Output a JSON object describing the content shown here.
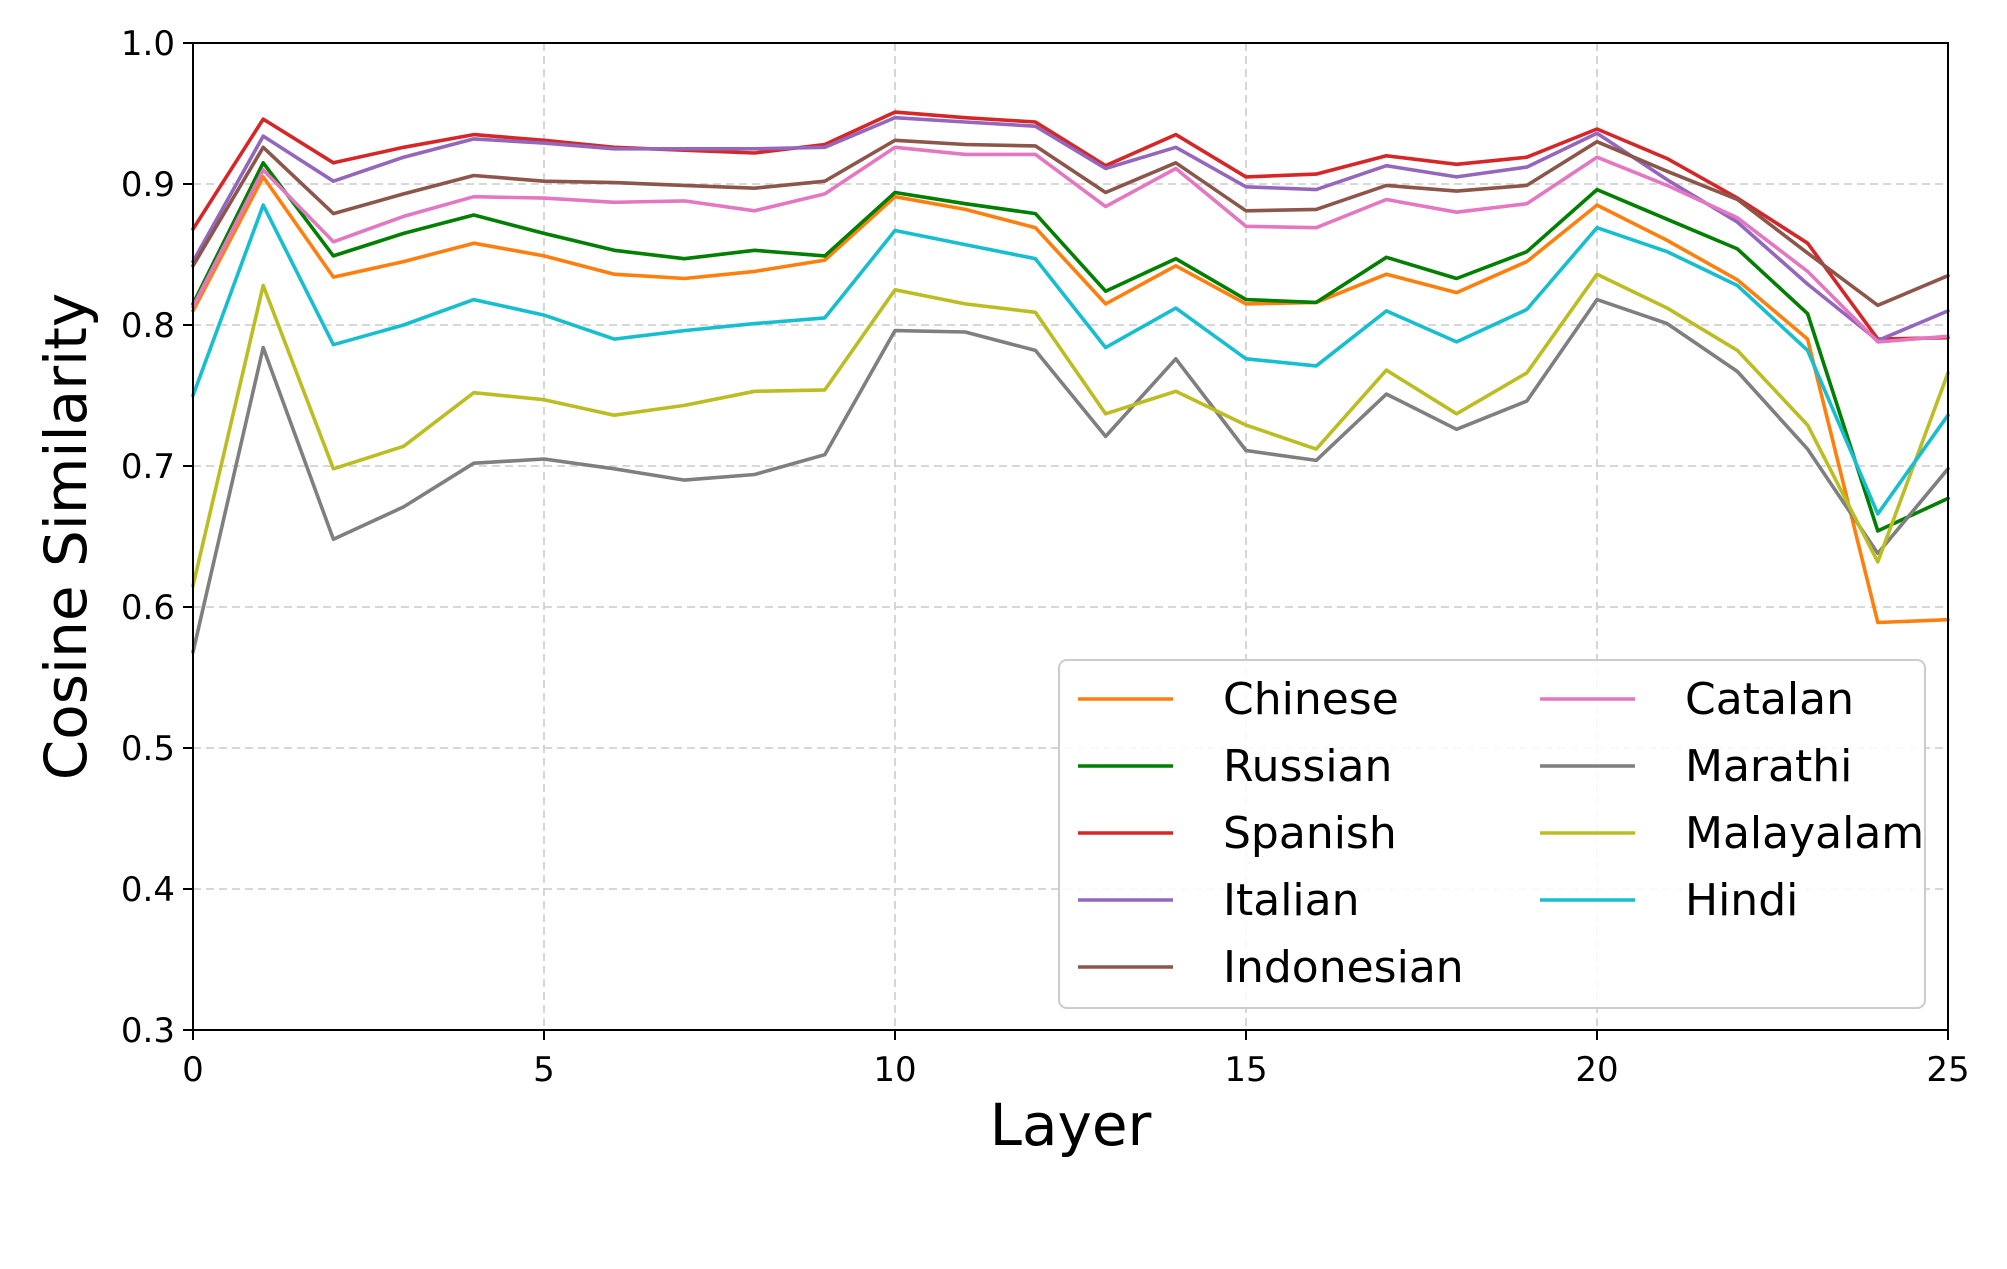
{
  "chart_data": {
    "type": "line",
    "title": "",
    "xlabel": "Layer",
    "ylabel": "Cosine Similarity",
    "xlim": [
      0,
      25
    ],
    "ylim": [
      0.3,
      1.0
    ],
    "xticks": [
      0,
      5,
      10,
      15,
      20,
      25
    ],
    "xtick_labels": [
      "0",
      "5",
      "10",
      "15",
      "20",
      "25"
    ],
    "yticks": [
      0.3,
      0.4,
      0.5,
      0.6,
      0.7,
      0.8,
      0.9,
      1.0
    ],
    "ytick_labels": [
      "0.3",
      "0.4",
      "0.5",
      "0.6",
      "0.7",
      "0.8",
      "0.9",
      "1.0"
    ],
    "grid": true,
    "legend_position": "lower-right",
    "legend_columns": 2,
    "x": [
      0,
      1,
      2,
      3,
      4,
      5,
      6,
      7,
      8,
      9,
      10,
      11,
      12,
      13,
      14,
      15,
      16,
      17,
      18,
      19,
      20,
      21,
      22,
      23,
      24,
      25
    ],
    "series": [
      {
        "name": "Chinese",
        "color": "#ff7f0e",
        "values": [
          0.81,
          0.905,
          0.834,
          0.845,
          0.858,
          0.849,
          0.836,
          0.833,
          0.838,
          0.846,
          0.891,
          0.882,
          0.869,
          0.815,
          0.842,
          0.815,
          0.816,
          0.836,
          0.823,
          0.845,
          0.885,
          0.86,
          0.832,
          0.79,
          0.589,
          0.591
        ]
      },
      {
        "name": "Russian",
        "color": "#007f00",
        "values": [
          0.815,
          0.915,
          0.849,
          0.865,
          0.878,
          0.865,
          0.853,
          0.847,
          0.853,
          0.849,
          0.894,
          0.886,
          0.879,
          0.824,
          0.847,
          0.818,
          0.816,
          0.848,
          0.833,
          0.852,
          0.896,
          0.875,
          0.854,
          0.808,
          0.654,
          0.677
        ]
      },
      {
        "name": "Spanish",
        "color": "#d62728",
        "values": [
          0.868,
          0.946,
          0.915,
          0.926,
          0.935,
          0.931,
          0.926,
          0.924,
          0.922,
          0.928,
          0.951,
          0.947,
          0.944,
          0.913,
          0.935,
          0.905,
          0.907,
          0.92,
          0.914,
          0.919,
          0.939,
          0.918,
          0.89,
          0.858,
          0.79,
          0.791
        ]
      },
      {
        "name": "Italian",
        "color": "#9467bd",
        "values": [
          0.845,
          0.934,
          0.902,
          0.919,
          0.932,
          0.929,
          0.925,
          0.925,
          0.925,
          0.926,
          0.947,
          0.944,
          0.941,
          0.911,
          0.926,
          0.898,
          0.896,
          0.913,
          0.905,
          0.912,
          0.936,
          0.903,
          0.873,
          0.829,
          0.789,
          0.81
        ]
      },
      {
        "name": "Indonesian",
        "color": "#8c564b",
        "values": [
          0.842,
          0.926,
          0.879,
          0.893,
          0.906,
          0.902,
          0.901,
          0.899,
          0.897,
          0.902,
          0.931,
          0.928,
          0.927,
          0.894,
          0.915,
          0.881,
          0.882,
          0.899,
          0.895,
          0.899,
          0.93,
          0.909,
          0.889,
          0.851,
          0.814,
          0.835
        ]
      },
      {
        "name": "Catalan",
        "color": "#e377c2",
        "values": [
          0.813,
          0.91,
          0.859,
          0.877,
          0.891,
          0.89,
          0.887,
          0.888,
          0.881,
          0.893,
          0.926,
          0.921,
          0.921,
          0.884,
          0.911,
          0.87,
          0.869,
          0.889,
          0.88,
          0.886,
          0.919,
          0.899,
          0.876,
          0.838,
          0.788,
          0.792
        ]
      },
      {
        "name": "Marathi",
        "color": "#7f7f7f",
        "values": [
          0.568,
          0.784,
          0.648,
          0.671,
          0.702,
          0.705,
          0.698,
          0.69,
          0.694,
          0.708,
          0.796,
          0.795,
          0.782,
          0.721,
          0.776,
          0.711,
          0.704,
          0.751,
          0.726,
          0.746,
          0.818,
          0.801,
          0.767,
          0.712,
          0.638,
          0.698
        ]
      },
      {
        "name": "Malayalam",
        "color": "#bcbd22",
        "values": [
          0.615,
          0.828,
          0.698,
          0.714,
          0.752,
          0.747,
          0.736,
          0.743,
          0.753,
          0.754,
          0.825,
          0.815,
          0.809,
          0.737,
          0.753,
          0.729,
          0.712,
          0.768,
          0.737,
          0.766,
          0.836,
          0.812,
          0.782,
          0.729,
          0.632,
          0.766
        ]
      },
      {
        "name": "Hindi",
        "color": "#17becf",
        "values": [
          0.75,
          0.885,
          0.786,
          0.8,
          0.818,
          0.807,
          0.79,
          0.796,
          0.801,
          0.805,
          0.867,
          0.857,
          0.847,
          0.784,
          0.812,
          0.776,
          0.771,
          0.81,
          0.788,
          0.811,
          0.869,
          0.852,
          0.828,
          0.782,
          0.666,
          0.736
        ]
      }
    ]
  }
}
